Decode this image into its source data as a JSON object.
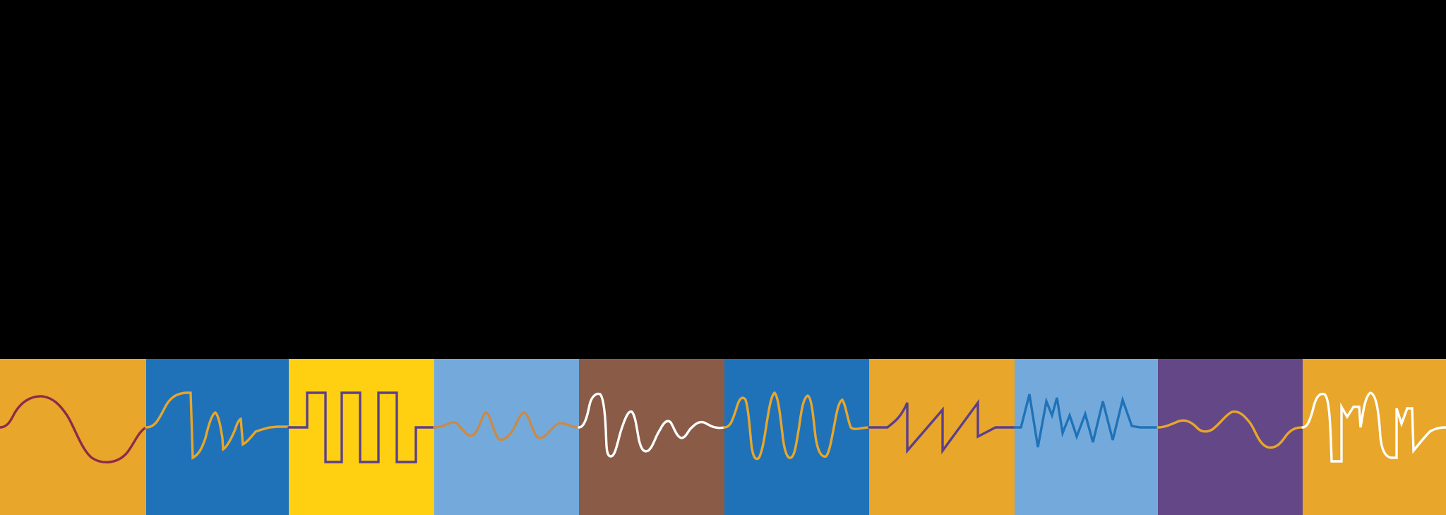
{
  "background": "#000000",
  "panels": [
    {
      "name": "sine-wave-panel",
      "bg": "#E8A62A",
      "stroke": "#8E2A4A",
      "icon": "sine-wave-icon"
    },
    {
      "name": "decaying-pulse-panel",
      "bg": "#1F72B8",
      "stroke": "#E8A62A",
      "icon": "decaying-sawtooth-wave-icon"
    },
    {
      "name": "square-wave-panel",
      "bg": "#FFD012",
      "stroke": "#5B3F8C",
      "icon": "square-wave-icon"
    },
    {
      "name": "small-ripple-panel",
      "bg": "#74AADB",
      "stroke": "#C98A48",
      "icon": "small-ripple-wave-icon"
    },
    {
      "name": "damped-oscillation-panel",
      "bg": "#8A5B46",
      "stroke": "#FFFFFF",
      "icon": "damped-oscillation-icon"
    },
    {
      "name": "high-frequency-sine-panel",
      "bg": "#1F72B8",
      "stroke": "#E8A62A",
      "icon": "high-frequency-sine-icon"
    },
    {
      "name": "sawtooth-wave-panel",
      "bg": "#E8A62A",
      "stroke": "#5B3F8C",
      "icon": "sawtooth-wave-icon"
    },
    {
      "name": "noise-zigzag-panel",
      "bg": "#74AADB",
      "stroke": "#1F72B8",
      "icon": "noise-zigzag-wave-icon"
    },
    {
      "name": "gentle-wave-panel",
      "bg": "#634787",
      "stroke": "#E8A62A",
      "icon": "gentle-wave-icon"
    },
    {
      "name": "mixed-wave-panel",
      "bg": "#E8A62A",
      "stroke": "#FFFFFF",
      "icon": "mixed-wave-icon"
    }
  ]
}
